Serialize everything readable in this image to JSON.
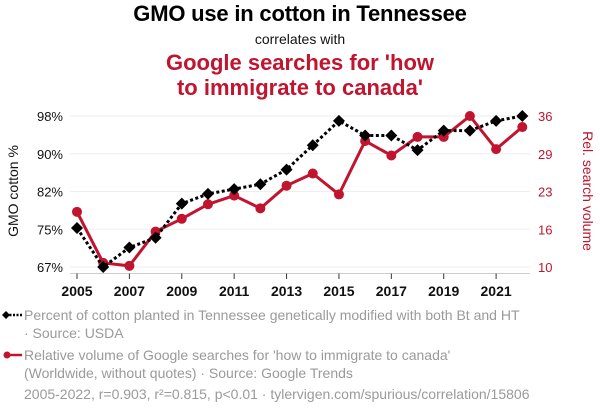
{
  "header": {
    "title": "GMO use in cotton in Tennessee",
    "subtitle": "correlates with",
    "title2_line1": "Google searches for 'how",
    "title2_line2": "to immigrate to canada'"
  },
  "colors": {
    "series1": "#000000",
    "series2": "#c0142f",
    "legend_text": "#9a9a9a",
    "grid": "#eeeeee"
  },
  "legend": {
    "series1_line1": "Percent of cotton planted in Tennessee genetically modified with both Bt and HT",
    "series1_line2": "· Source: USDA",
    "series2_line1": "Relative volume of Google searches for 'how to immigrate to canada'",
    "series2_line2": "(Worldwide, without quotes) · Source: Google Trends"
  },
  "footer": "2005-2022, r=0.903, r²=0.815, p<0.01 · tylervigen.com/spurious/correlation/15806",
  "chart_data": {
    "type": "line",
    "title": "GMO use in cotton in Tennessee",
    "subtitle": "correlates with Google searches for 'how to immigrate to canada'",
    "x": [
      2005,
      2006,
      2007,
      2008,
      2009,
      2010,
      2011,
      2012,
      2013,
      2014,
      2015,
      2016,
      2017,
      2018,
      2019,
      2020,
      2021,
      2022
    ],
    "xticks": [
      2005,
      2007,
      2009,
      2011,
      2013,
      2015,
      2017,
      2019,
      2021
    ],
    "xlim": [
      2005,
      2022
    ],
    "grid": true,
    "series": [
      {
        "name": "Percent of cotton planted in Tennessee genetically modified with both Bt and HT",
        "axis": "left",
        "style": "dotted",
        "marker": "diamond",
        "values": [
          75,
          67,
          71,
          73,
          80,
          82,
          83,
          84,
          87,
          92,
          97,
          94,
          94,
          91,
          95,
          95,
          97,
          98
        ]
      },
      {
        "name": "Relative volume of Google searches for 'how to immigrate to canada'",
        "axis": "right",
        "style": "solid",
        "marker": "circle",
        "values": [
          19.5,
          10.7,
          10.2,
          16.1,
          18.3,
          20.8,
          22.3,
          20.1,
          24.0,
          26.1,
          22.5,
          31.7,
          29.2,
          32.4,
          32.4,
          36.0,
          30.3,
          34.1
        ]
      }
    ],
    "left_axis": {
      "label": "GMO cotton %",
      "ylim": [
        67,
        98
      ],
      "tick_labels": [
        "98%",
        "90%",
        "82%",
        "75%",
        "67%"
      ]
    },
    "right_axis": {
      "label": "Rel. search volume",
      "ylim": [
        10,
        36
      ],
      "tick_labels": [
        "36",
        "29",
        "23",
        "16",
        "10"
      ]
    }
  }
}
